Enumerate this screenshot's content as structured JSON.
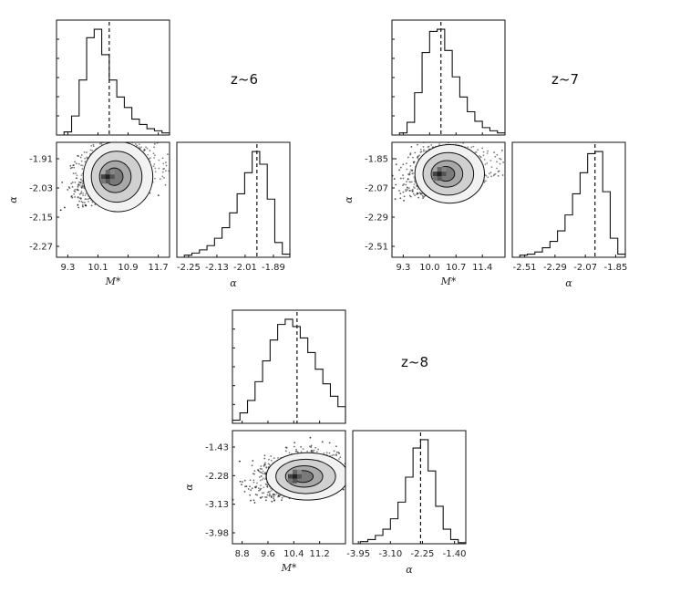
{
  "chart_data": [
    {
      "type": "corner",
      "title": "z~6",
      "params": [
        "M*",
        "α"
      ],
      "xlabel_m": "M*",
      "xlabel_a": "α",
      "ylabel": "α",
      "mstar": {
        "range": [
          9.0,
          12.0
        ],
        "ticks": [
          9.3,
          10.1,
          10.9,
          11.7
        ],
        "tick_labels": [
          "9.3",
          "10.1",
          "10.9",
          "11.7"
        ],
        "median": 10.4,
        "sigma": 0.4,
        "skew": 0.55
      },
      "alpha": {
        "range": [
          -2.3,
          -1.82
        ],
        "ticks": [
          -2.25,
          -2.13,
          -2.01,
          -1.89
        ],
        "tick_labels": [
          "-2.25",
          "-2.13",
          "-2.01",
          "-1.89"
        ],
        "ytick_labels": [
          "-1.91",
          "-2.03",
          "-2.15",
          "-2.27"
        ],
        "median": -1.96,
        "sigma": 0.07,
        "skew": -0.6
      },
      "corr": 0.2,
      "m_density": [
        0.0,
        0.03,
        0.18,
        0.52,
        0.92,
        1.0,
        0.76,
        0.52,
        0.36,
        0.26,
        0.15,
        0.1,
        0.06,
        0.04,
        0.02
      ],
      "a_density": [
        0.0,
        0.02,
        0.04,
        0.07,
        0.11,
        0.18,
        0.28,
        0.42,
        0.6,
        0.8,
        1.0,
        0.88,
        0.55,
        0.14,
        0.03
      ]
    },
    {
      "type": "corner",
      "title": "z~7",
      "params": [
        "M*",
        "α"
      ],
      "xlabel_m": "M*",
      "xlabel_a": "α",
      "ylabel": "α",
      "mstar": {
        "range": [
          9.0,
          12.0
        ],
        "ticks": [
          9.3,
          10.0,
          10.7,
          11.4
        ],
        "tick_labels": [
          "9.3",
          "10.0",
          "10.7",
          "11.4"
        ],
        "median": 10.3,
        "sigma": 0.4,
        "skew": 0.55
      },
      "alpha": {
        "range": [
          -2.6,
          -1.78
        ],
        "ticks": [
          -2.51,
          -2.29,
          -2.07,
          -1.85
        ],
        "tick_labels": [
          "-2.51",
          "-2.29",
          "-2.07",
          "-1.85"
        ],
        "ytick_labels": [
          "-1.85",
          "-2.07",
          "-2.29",
          "-2.51"
        ],
        "median": -2.0,
        "sigma": 0.1,
        "skew": -0.6
      },
      "corr": 0.2,
      "m_density": [
        0.0,
        0.02,
        0.12,
        0.4,
        0.78,
        0.98,
        1.0,
        0.8,
        0.55,
        0.36,
        0.22,
        0.13,
        0.07,
        0.04,
        0.02
      ],
      "a_density": [
        0.0,
        0.02,
        0.03,
        0.05,
        0.09,
        0.15,
        0.25,
        0.4,
        0.6,
        0.8,
        0.98,
        1.0,
        0.62,
        0.18,
        0.03
      ]
    },
    {
      "type": "corner",
      "title": "z~8",
      "params": [
        "M*",
        "α"
      ],
      "xlabel_m": "M*",
      "xlabel_a": "α",
      "ylabel": "α",
      "mstar": {
        "range": [
          8.5,
          12.0
        ],
        "ticks": [
          8.8,
          9.6,
          10.4,
          11.2
        ],
        "tick_labels": [
          "8.8",
          "9.6",
          "10.4",
          "11.2"
        ],
        "median": 10.5,
        "sigma": 0.55,
        "skew": 0.1
      },
      "alpha": {
        "range": [
          -4.1,
          -1.1
        ],
        "ticks": [
          -3.95,
          -3.1,
          -2.25,
          -1.4
        ],
        "tick_labels": [
          "-3.95",
          "-3.10",
          "-2.25",
          "-1.40"
        ],
        "ytick_labels": [
          "-1.43",
          "-2.28",
          "-3.13",
          "-3.98"
        ],
        "median": -2.3,
        "sigma": 0.3,
        "skew": -0.4
      },
      "corr": 0.25,
      "m_density": [
        0.03,
        0.1,
        0.22,
        0.4,
        0.6,
        0.8,
        0.95,
        1.0,
        0.93,
        0.82,
        0.68,
        0.52,
        0.38,
        0.26,
        0.16
      ],
      "a_density": [
        0.0,
        0.02,
        0.04,
        0.08,
        0.14,
        0.24,
        0.4,
        0.64,
        0.92,
        1.0,
        0.7,
        0.36,
        0.14,
        0.04,
        0.01
      ]
    }
  ]
}
